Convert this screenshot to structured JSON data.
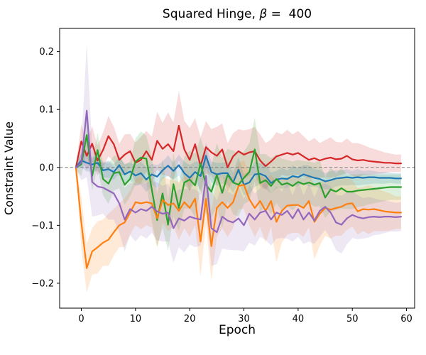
{
  "title": {
    "prefix": "Squared Hinge, ",
    "beta": "β",
    "suffix": " =  400"
  },
  "axes": {
    "xlabel": "Epoch",
    "ylabel": "Constraint Value"
  },
  "chart_data": {
    "type": "line",
    "title": "Squared Hinge, β = 400",
    "xlabel": "Epoch",
    "ylabel": "Constraint Value",
    "xlim": [
      -4,
      61.5
    ],
    "ylim": [
      -0.243,
      0.24
    ],
    "x_ticks": [
      0,
      10,
      20,
      30,
      40,
      50,
      60
    ],
    "y_ticks": [
      0.2,
      0.1,
      0.0,
      -0.1,
      -0.2
    ],
    "grid": false,
    "legend": null,
    "zero_line": {
      "y": 0.0,
      "style": "dashed",
      "color": "#7f7f7f"
    },
    "band_opacity": 0.16,
    "x": [
      -1,
      0,
      1,
      2,
      3,
      4,
      5,
      6,
      7,
      8,
      9,
      10,
      11,
      12,
      13,
      14,
      15,
      16,
      17,
      18,
      19,
      20,
      21,
      22,
      23,
      24,
      25,
      26,
      27,
      28,
      29,
      30,
      31,
      32,
      33,
      34,
      35,
      36,
      37,
      38,
      39,
      40,
      41,
      42,
      43,
      44,
      45,
      46,
      47,
      48,
      49,
      50,
      51,
      52,
      53,
      54,
      55,
      56,
      57,
      58,
      59
    ],
    "series": [
      {
        "name": "red",
        "color": "#d62728",
        "values": [
          0.0,
          0.045,
          0.02,
          0.041,
          0.012,
          0.03,
          0.054,
          0.04,
          0.013,
          0.022,
          0.028,
          0.008,
          0.013,
          0.028,
          0.013,
          0.046,
          0.032,
          0.04,
          0.028,
          0.072,
          0.031,
          0.013,
          0.04,
          0.002,
          0.035,
          0.026,
          0.02,
          0.031,
          0.0,
          0.019,
          0.028,
          0.022,
          0.026,
          0.028,
          0.012,
          0.002,
          0.01,
          0.019,
          0.022,
          0.025,
          0.022,
          0.025,
          0.019,
          0.013,
          0.016,
          0.012,
          0.015,
          0.017,
          0.014,
          0.015,
          0.02,
          0.014,
          0.012,
          0.013,
          0.011,
          0.01,
          0.009,
          0.008,
          0.008,
          0.007,
          0.007
        ],
        "band": [
          0.004,
          0.03,
          0.025,
          0.03,
          0.026,
          0.03,
          0.035,
          0.03,
          0.028,
          0.035,
          0.03,
          0.035,
          0.04,
          0.035,
          0.04,
          0.05,
          0.045,
          0.055,
          0.05,
          0.06,
          0.05,
          0.055,
          0.045,
          0.05,
          0.045,
          0.04,
          0.05,
          0.045,
          0.042,
          0.04,
          0.038,
          0.042,
          0.04,
          0.042,
          0.045,
          0.04,
          0.038,
          0.042,
          0.035,
          0.04,
          0.035,
          0.038,
          0.035,
          0.032,
          0.035,
          0.03,
          0.032,
          0.035,
          0.03,
          0.028,
          0.03,
          0.028,
          0.03,
          0.026,
          0.024,
          0.022,
          0.02,
          0.018,
          0.016,
          0.015,
          0.015
        ]
      },
      {
        "name": "blue",
        "color": "#1f77b4",
        "values": [
          0.0,
          0.012,
          0.008,
          0.005,
          0.008,
          -0.005,
          -0.003,
          -0.008,
          0.004,
          -0.012,
          -0.007,
          -0.014,
          -0.01,
          -0.021,
          -0.012,
          -0.016,
          -0.005,
          0.003,
          -0.006,
          0.004,
          -0.01,
          -0.018,
          -0.008,
          -0.015,
          0.02,
          -0.008,
          -0.012,
          -0.01,
          -0.01,
          -0.026,
          -0.004,
          -0.03,
          -0.026,
          -0.012,
          -0.011,
          -0.015,
          -0.027,
          -0.021,
          -0.019,
          -0.02,
          -0.015,
          -0.017,
          -0.012,
          -0.015,
          -0.018,
          -0.02,
          -0.024,
          -0.022,
          -0.019,
          -0.018,
          -0.017,
          -0.018,
          -0.017,
          -0.018,
          -0.017,
          -0.017,
          -0.018,
          -0.018,
          -0.018,
          -0.019,
          -0.019
        ],
        "band": [
          0.003,
          0.012,
          0.015,
          0.012,
          0.014,
          0.012,
          0.015,
          0.013,
          0.015,
          0.018,
          0.015,
          0.018,
          0.02,
          0.022,
          0.018,
          0.02,
          0.015,
          0.018,
          0.015,
          0.018,
          0.02,
          0.022,
          0.018,
          0.025,
          0.02,
          0.018,
          0.02,
          0.018,
          0.02,
          0.018,
          0.022,
          0.018,
          0.02,
          0.022,
          0.018,
          0.022,
          0.018,
          0.015,
          0.018,
          0.015,
          0.018,
          0.015,
          0.016,
          0.018,
          0.015,
          0.016,
          0.014,
          0.016,
          0.014,
          0.013,
          0.014,
          0.012,
          0.014,
          0.012,
          0.012,
          0.011,
          0.01,
          0.01,
          0.009,
          0.009,
          0.009
        ]
      },
      {
        "name": "green",
        "color": "#2ca02c",
        "values": [
          0.0,
          0.005,
          0.056,
          -0.015,
          0.03,
          -0.02,
          -0.028,
          -0.01,
          -0.008,
          -0.03,
          -0.02,
          0.01,
          0.017,
          0.015,
          -0.038,
          -0.091,
          -0.045,
          -0.099,
          -0.029,
          -0.07,
          -0.026,
          -0.021,
          -0.031,
          0.007,
          -0.03,
          -0.042,
          -0.013,
          -0.044,
          -0.013,
          -0.026,
          -0.03,
          -0.018,
          -0.008,
          0.031,
          -0.027,
          -0.022,
          -0.032,
          -0.02,
          -0.03,
          -0.027,
          -0.032,
          -0.025,
          -0.029,
          -0.026,
          -0.03,
          -0.027,
          -0.052,
          -0.038,
          -0.042,
          -0.036,
          -0.042,
          -0.042,
          -0.04,
          -0.039,
          -0.038,
          -0.037,
          -0.036,
          -0.035,
          -0.034,
          -0.034,
          -0.034
        ],
        "band": [
          0.004,
          0.02,
          0.03,
          0.025,
          0.03,
          0.028,
          0.035,
          0.03,
          0.028,
          0.035,
          0.03,
          0.04,
          0.045,
          0.04,
          0.055,
          0.045,
          0.06,
          0.045,
          0.055,
          0.04,
          0.045,
          0.05,
          0.055,
          0.045,
          0.05,
          0.045,
          0.055,
          0.06,
          0.045,
          0.055,
          0.055,
          0.045,
          0.05,
          0.055,
          0.05,
          0.045,
          0.048,
          0.042,
          0.045,
          0.04,
          0.042,
          0.038,
          0.04,
          0.036,
          0.038,
          0.04,
          0.035,
          0.038,
          0.032,
          0.035,
          0.03,
          0.03,
          0.028,
          0.028,
          0.026,
          0.025,
          0.024,
          0.023,
          0.022,
          0.022,
          0.022
        ]
      },
      {
        "name": "orange",
        "color": "#ff7f0e",
        "values": [
          0.0,
          -0.095,
          -0.174,
          -0.145,
          -0.138,
          -0.13,
          -0.125,
          -0.112,
          -0.1,
          -0.095,
          -0.078,
          -0.06,
          -0.062,
          -0.06,
          -0.062,
          -0.088,
          -0.056,
          -0.065,
          -0.062,
          -0.075,
          -0.06,
          -0.07,
          -0.054,
          -0.128,
          -0.054,
          -0.136,
          -0.07,
          -0.06,
          -0.07,
          -0.06,
          -0.032,
          -0.03,
          -0.055,
          -0.07,
          -0.058,
          -0.075,
          -0.058,
          -0.094,
          -0.075,
          -0.066,
          -0.065,
          -0.065,
          -0.07,
          -0.058,
          -0.094,
          -0.08,
          -0.07,
          -0.073,
          -0.07,
          -0.068,
          -0.063,
          -0.062,
          -0.076,
          -0.072,
          -0.073,
          -0.072,
          -0.074,
          -0.076,
          -0.077,
          -0.078,
          -0.078
        ],
        "band": [
          0.004,
          0.045,
          0.042,
          0.04,
          0.045,
          0.04,
          0.045,
          0.04,
          0.038,
          0.042,
          0.038,
          0.04,
          0.045,
          0.04,
          0.042,
          0.05,
          0.04,
          0.045,
          0.04,
          0.05,
          0.045,
          0.05,
          0.045,
          0.06,
          0.045,
          0.06,
          0.05,
          0.045,
          0.05,
          0.045,
          0.04,
          0.042,
          0.045,
          0.05,
          0.045,
          0.055,
          0.045,
          0.07,
          0.055,
          0.05,
          0.048,
          0.048,
          0.05,
          0.045,
          0.065,
          0.055,
          0.048,
          0.05,
          0.048,
          0.05,
          0.045,
          0.04,
          0.04,
          0.038,
          0.042,
          0.038,
          0.036,
          0.034,
          0.032,
          0.028,
          0.028
        ],
        "note": ""
      },
      {
        "name": "purple",
        "color": "#9467bd",
        "values": [
          0.0,
          0.008,
          0.098,
          -0.025,
          -0.033,
          -0.035,
          -0.04,
          -0.045,
          -0.062,
          -0.09,
          -0.072,
          -0.078,
          -0.072,
          -0.075,
          -0.068,
          -0.076,
          -0.08,
          -0.078,
          -0.105,
          -0.088,
          -0.092,
          -0.085,
          -0.088,
          -0.09,
          -0.015,
          -0.105,
          -0.112,
          -0.085,
          -0.092,
          -0.095,
          -0.088,
          -0.1,
          -0.08,
          -0.09,
          -0.078,
          -0.075,
          -0.09,
          -0.078,
          -0.082,
          -0.075,
          -0.088,
          -0.072,
          -0.09,
          -0.078,
          -0.092,
          -0.075,
          -0.068,
          -0.078,
          -0.095,
          -0.099,
          -0.088,
          -0.082,
          -0.086,
          -0.088,
          -0.086,
          -0.085,
          -0.086,
          -0.085,
          -0.085,
          -0.086,
          -0.085
        ],
        "band": [
          0.004,
          0.03,
          0.115,
          0.06,
          0.05,
          0.045,
          0.05,
          0.045,
          0.05,
          0.055,
          0.045,
          0.05,
          0.045,
          0.048,
          0.045,
          0.05,
          0.048,
          0.05,
          0.06,
          0.05,
          0.055,
          0.048,
          0.05,
          0.045,
          0.06,
          0.065,
          0.055,
          0.055,
          0.05,
          0.048,
          0.055,
          0.045,
          0.05,
          0.045,
          0.042,
          0.05,
          0.045,
          0.045,
          0.04,
          0.048,
          0.04,
          0.048,
          0.042,
          0.05,
          0.04,
          0.045,
          0.04,
          0.045,
          0.048,
          0.05,
          0.045,
          0.04,
          0.038,
          0.035,
          0.035,
          0.032,
          0.03,
          0.028,
          0.026,
          0.025,
          0.025
        ]
      }
    ]
  }
}
